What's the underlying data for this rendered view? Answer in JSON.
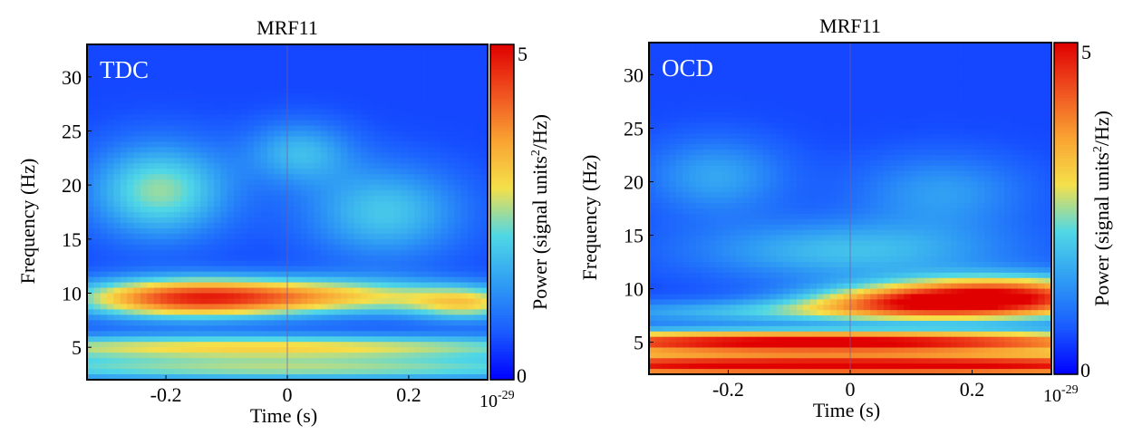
{
  "chart_data": [
    {
      "type": "heatmap",
      "title": "MRF11",
      "panel_label": "TDC",
      "xlabel": "Time (s)",
      "ylabel": "Frequency (Hz)",
      "xlim": [
        -0.33,
        0.33
      ],
      "ylim": [
        2,
        33
      ],
      "x_ticks": [
        -0.2,
        0,
        0.2
      ],
      "x_tick_labels": [
        "-0.2",
        "0",
        "0.2"
      ],
      "y_ticks": [
        5,
        10,
        15,
        20,
        25,
        30
      ],
      "y_tick_labels": [
        "5",
        "10",
        "15",
        "20",
        "25",
        "30"
      ],
      "colorbar": {
        "label_prefix": "Power (signal units",
        "label_sup": "2",
        "label_suffix": "/Hz)",
        "range": [
          0,
          5
        ],
        "max_label": "5",
        "min_label": "0",
        "scale_base": "10",
        "scale_exp": "-29",
        "colors": [
          "#0000ff",
          "#1a5cff",
          "#2f9cf4",
          "#4fd7e6",
          "#f5e04a",
          "#f9a232",
          "#f05020",
          "#e00000"
        ]
      },
      "blobs": [
        {
          "t": 0.0,
          "f": 3.0,
          "st": 0.5,
          "sf": 0.8,
          "power": 1.9
        },
        {
          "t": -0.05,
          "f": 5.0,
          "st": 0.45,
          "sf": 0.8,
          "power": 2.4
        },
        {
          "t": -0.18,
          "f": 9.5,
          "st": 0.13,
          "sf": 1.3,
          "power": 3.1
        },
        {
          "t": 0.05,
          "f": 9.7,
          "st": 0.17,
          "sf": 1.2,
          "power": 2.4
        },
        {
          "t": 0.3,
          "f": 9.0,
          "st": 0.07,
          "sf": 1.1,
          "power": 1.9
        },
        {
          "t": -0.21,
          "f": 19.5,
          "st": 0.08,
          "sf": 3.0,
          "power": 1.9
        },
        {
          "t": 0.16,
          "f": 17.5,
          "st": 0.09,
          "sf": 3.0,
          "power": 1.4
        },
        {
          "t": 0.02,
          "f": 23.0,
          "st": 0.06,
          "sf": 2.0,
          "power": 1.2
        }
      ]
    },
    {
      "type": "heatmap",
      "title": "MRF11",
      "panel_label": "OCD",
      "xlabel": "Time (s)",
      "ylabel": "Frequency (Hz)",
      "xlim": [
        -0.33,
        0.33
      ],
      "ylim": [
        2,
        33
      ],
      "x_ticks": [
        -0.2,
        0,
        0.2
      ],
      "x_tick_labels": [
        "-0.2",
        "0",
        "0.2"
      ],
      "y_ticks": [
        5,
        10,
        15,
        20,
        25,
        30
      ],
      "y_tick_labels": [
        "5",
        "10",
        "15",
        "20",
        "25",
        "30"
      ],
      "colorbar": {
        "label_prefix": "Power (signal units",
        "label_sup": "2",
        "label_suffix": "/Hz)",
        "range": [
          0,
          5
        ],
        "max_label": "5",
        "min_label": "0",
        "scale_base": "10",
        "scale_exp": "-29",
        "colors": [
          "#0000ff",
          "#1a5cff",
          "#2f9cf4",
          "#4fd7e6",
          "#f5e04a",
          "#f9a232",
          "#f05020",
          "#e00000"
        ]
      },
      "blobs": [
        {
          "t": 0.0,
          "f": 2.8,
          "st": 0.8,
          "sf": 0.75,
          "power": 4.6
        },
        {
          "t": -0.05,
          "f": 5.0,
          "st": 0.45,
          "sf": 0.75,
          "power": 4.7
        },
        {
          "t": 0.26,
          "f": 9.3,
          "st": 0.14,
          "sf": 1.3,
          "power": 4.0
        },
        {
          "t": 0.08,
          "f": 8.8,
          "st": 0.12,
          "sf": 1.0,
          "power": 2.2
        },
        {
          "t": -0.05,
          "f": 7.8,
          "st": 0.3,
          "sf": 0.8,
          "power": 1.4
        },
        {
          "t": 0.0,
          "f": 13.5,
          "st": 0.18,
          "sf": 2.0,
          "power": 1.3
        },
        {
          "t": -0.22,
          "f": 20.5,
          "st": 0.08,
          "sf": 2.5,
          "power": 1.0
        },
        {
          "t": 0.15,
          "f": 19.0,
          "st": 0.1,
          "sf": 2.5,
          "power": 0.9
        }
      ]
    }
  ]
}
